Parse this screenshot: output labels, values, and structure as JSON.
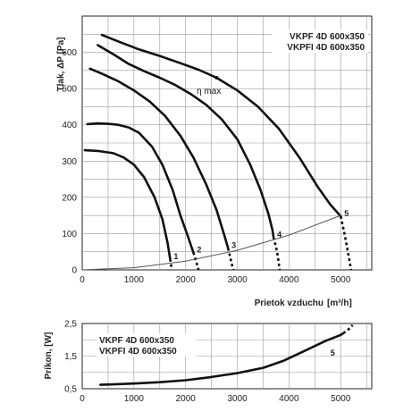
{
  "chart_data": [
    {
      "type": "line",
      "id": "pressure",
      "ylabel": "Tlak, ΔP [Pa]",
      "xlabel": "Prietok vzduchu",
      "xunit": "[m³/h]",
      "xlim": [
        0,
        5600
      ],
      "ylim": [
        0,
        700
      ],
      "xticks": [
        0,
        1000,
        2000,
        3000,
        4000,
        5000
      ],
      "xtick_labels": [
        "0",
        "1000",
        "2000",
        "3000",
        "4000",
        "5000"
      ],
      "yticks": [
        0,
        100,
        200,
        300,
        400,
        500,
        600
      ],
      "ytick_labels": [
        "0",
        "100",
        "200",
        "300",
        "400",
        "500",
        "600"
      ],
      "grid": true,
      "legend_lines": [
        "VKPF 4D 600x350",
        "VKPFI 4D 600x350"
      ],
      "legend_position": "top-right",
      "annotations": [
        {
          "text": "η max",
          "x": 2450,
          "y": 520
        }
      ],
      "series": [
        {
          "name": "1",
          "points": [
            [
              50,
              330
            ],
            [
              300,
              328
            ],
            [
              600,
              322
            ],
            [
              800,
              310
            ],
            [
              1000,
              290
            ],
            [
              1200,
              255
            ],
            [
              1400,
              200
            ],
            [
              1550,
              140
            ],
            [
              1650,
              75
            ],
            [
              1700,
              30
            ]
          ],
          "dashed": [
            [
              1700,
              30
            ],
            [
              1720,
              12
            ],
            [
              1730,
              0
            ]
          ]
        },
        {
          "name": "2",
          "points": [
            [
              100,
              402
            ],
            [
              300,
              404
            ],
            [
              500,
              403
            ],
            [
              700,
              400
            ],
            [
              900,
              393
            ],
            [
              1100,
              378
            ],
            [
              1350,
              340
            ],
            [
              1550,
              290
            ],
            [
              1750,
              220
            ],
            [
              1900,
              150
            ],
            [
              2050,
              90
            ],
            [
              2150,
              48
            ]
          ],
          "dashed": [
            [
              2150,
              48
            ],
            [
              2210,
              20
            ],
            [
              2250,
              0
            ]
          ]
        },
        {
          "name": "3",
          "points": [
            [
              150,
              555
            ],
            [
              400,
              540
            ],
            [
              700,
              520
            ],
            [
              1000,
              495
            ],
            [
              1300,
              465
            ],
            [
              1600,
              425
            ],
            [
              1900,
              370
            ],
            [
              2150,
              310
            ],
            [
              2400,
              235
            ],
            [
              2600,
              165
            ],
            [
              2750,
              95
            ],
            [
              2820,
              60
            ]
          ],
          "dashed": [
            [
              2820,
              60
            ],
            [
              2880,
              25
            ],
            [
              2920,
              0
            ]
          ]
        },
        {
          "name": "4",
          "points": [
            [
              300,
              620
            ],
            [
              600,
              595
            ],
            [
              900,
              568
            ],
            [
              1200,
              548
            ],
            [
              1500,
              530
            ],
            [
              1800,
              510
            ],
            [
              2100,
              485
            ],
            [
              2400,
              455
            ],
            [
              2700,
              415
            ],
            [
              3000,
              360
            ],
            [
              3250,
              290
            ],
            [
              3450,
              220
            ],
            [
              3600,
              155
            ],
            [
              3680,
              110
            ],
            [
              3700,
              90
            ]
          ],
          "dashed": [
            [
              3700,
              90
            ],
            [
              3770,
              50
            ],
            [
              3820,
              0
            ]
          ]
        },
        {
          "name": "5",
          "points": [
            [
              380,
              648
            ],
            [
              700,
              630
            ],
            [
              1100,
              608
            ],
            [
              1500,
              590
            ],
            [
              1900,
              570
            ],
            [
              2250,
              552
            ],
            [
              2600,
              530
            ],
            [
              3000,
              495
            ],
            [
              3400,
              450
            ],
            [
              3800,
              390
            ],
            [
              4200,
              310
            ],
            [
              4550,
              230
            ],
            [
              4800,
              180
            ],
            [
              5000,
              148
            ]
          ],
          "dashed": [
            [
              5000,
              148
            ],
            [
              5080,
              95
            ],
            [
              5150,
              40
            ],
            [
              5200,
              0
            ]
          ]
        },
        {
          "name": "",
          "kind": "system",
          "points": [
            [
              0,
              0
            ],
            [
              1000,
              6
            ],
            [
              2000,
              24
            ],
            [
              3000,
              54
            ],
            [
              4000,
              96
            ],
            [
              5000,
              150
            ]
          ]
        }
      ]
    },
    {
      "type": "line",
      "id": "power",
      "ylabel": "Príkon, [W]",
      "xlim": [
        0,
        5600
      ],
      "ylim": [
        0.5,
        2.5
      ],
      "xticks": [
        0,
        1000,
        2000,
        3000,
        4000,
        5000
      ],
      "xtick_labels": [
        "0",
        "1000",
        "2000",
        "3000",
        "4000",
        "5000"
      ],
      "yticks": [
        0.5,
        1.5,
        2.5
      ],
      "ytick_labels": [
        "0,5",
        "1,5",
        "2,5"
      ],
      "grid": true,
      "legend_lines": [
        "VKPF 4D 600x350",
        "VKPFI 4D 600x350"
      ],
      "legend_position": "top-left",
      "series": [
        {
          "name": "5",
          "points": [
            [
              350,
              0.62
            ],
            [
              1000,
              0.66
            ],
            [
              1500,
              0.7
            ],
            [
              2000,
              0.76
            ],
            [
              2500,
              0.86
            ],
            [
              3000,
              0.98
            ],
            [
              3500,
              1.14
            ],
            [
              3900,
              1.36
            ],
            [
              4300,
              1.66
            ],
            [
              4700,
              1.96
            ],
            [
              5000,
              2.15
            ],
            [
              5050,
              2.2
            ]
          ],
          "dashed": [
            [
              5050,
              2.2
            ],
            [
              5150,
              2.32
            ],
            [
              5230,
              2.45
            ]
          ]
        }
      ]
    }
  ]
}
